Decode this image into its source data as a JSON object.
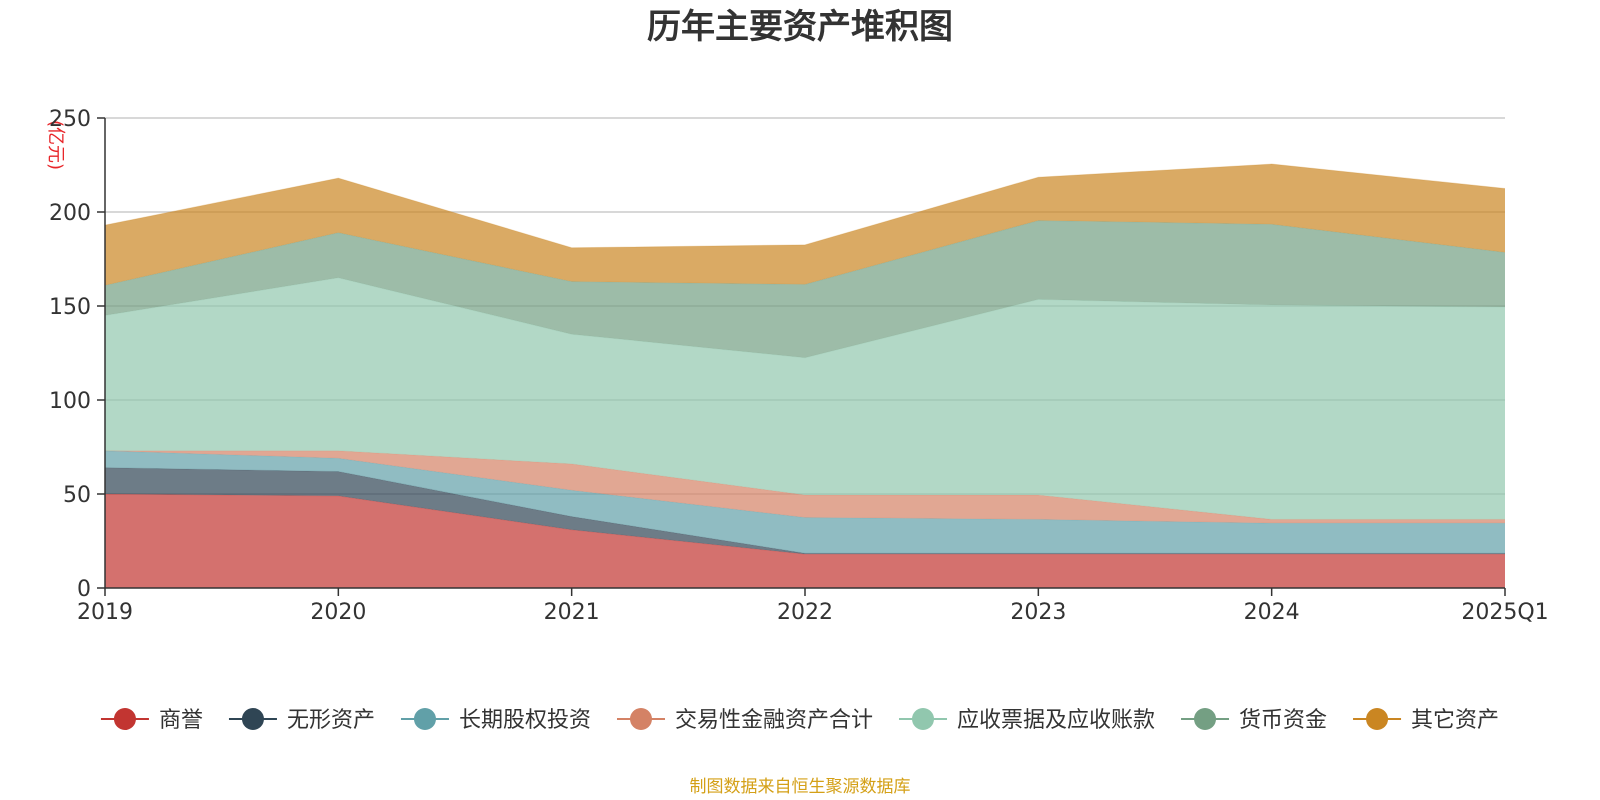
{
  "chart_data": {
    "type": "area",
    "stacked": true,
    "title": "历年主要资产堆积图",
    "ylabel": "(亿元)",
    "ylim": [
      0,
      250
    ],
    "yticks": [
      0,
      50,
      100,
      150,
      200,
      250
    ],
    "x": [
      "2019",
      "2020",
      "2021",
      "2022",
      "2023",
      "2024",
      "2025Q1"
    ],
    "grid": true,
    "legend_position": "bottom",
    "series": [
      {
        "name": "商誉",
        "color": "#c23531",
        "values": [
          50,
          49,
          31,
          18,
          18,
          18,
          18
        ]
      },
      {
        "name": "无形资产",
        "color": "#2f4554",
        "values": [
          14,
          13,
          7,
          0.5,
          0.5,
          0.5,
          0.5
        ]
      },
      {
        "name": "长期股权投资",
        "color": "#61a0a8",
        "values": [
          9,
          7,
          14,
          19,
          18,
          16,
          16
        ]
      },
      {
        "name": "交易性金融资产合计",
        "color": "#d48265",
        "values": [
          0,
          4,
          14,
          12,
          13,
          2,
          2
        ]
      },
      {
        "name": "应收票据及应收账款",
        "color": "#91c7ae",
        "values": [
          72,
          92,
          69,
          73,
          104,
          114,
          113
        ]
      },
      {
        "name": "货币资金",
        "color": "#749f83",
        "values": [
          16,
          24,
          28,
          39,
          42,
          43,
          29
        ]
      },
      {
        "name": "其它资产",
        "color": "#ca8622",
        "values": [
          32,
          29,
          18,
          21,
          23,
          32,
          34
        ]
      }
    ],
    "source": "制图数据来自恒生聚源数据库"
  }
}
